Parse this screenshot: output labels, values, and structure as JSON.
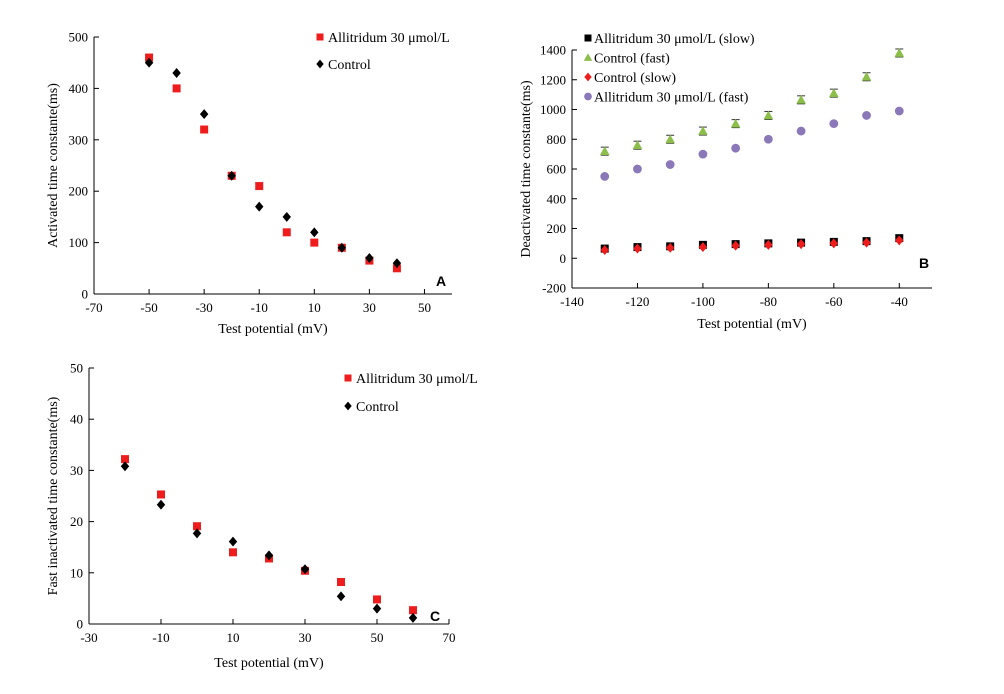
{
  "chart_data": [
    {
      "type": "scatter",
      "panel_label": "A",
      "xlabel": "Test potential (mV)",
      "ylabel": "Activated time constante(ms)",
      "xlim": [
        -70,
        60
      ],
      "ylim": [
        0,
        500
      ],
      "xticks": [
        -70,
        -50,
        -30,
        -10,
        10,
        30,
        50
      ],
      "yticks": [
        0,
        100,
        200,
        300,
        400,
        500
      ],
      "legend_position": "top-right",
      "series": [
        {
          "name": "Allitridum 30 μmol/L",
          "marker": "square",
          "color": "#ee1c1c",
          "x": [
            -50,
            -40,
            -30,
            -20,
            -10,
            0,
            10,
            20,
            30,
            40
          ],
          "y": [
            460,
            400,
            320,
            230,
            210,
            120,
            100,
            90,
            65,
            50
          ]
        },
        {
          "name": "Control",
          "marker": "diamond",
          "color": "#000000",
          "x": [
            -50,
            -40,
            -30,
            -20,
            -10,
            0,
            10,
            20,
            30,
            40
          ],
          "y": [
            450,
            430,
            350,
            230,
            170,
            150,
            120,
            90,
            70,
            60
          ]
        }
      ]
    },
    {
      "type": "scatter",
      "panel_label": "B",
      "xlabel": "Test potential (mV)",
      "ylabel": "Deactivated time constante(ms)",
      "xlim": [
        -140,
        -30
      ],
      "ylim": [
        -200,
        1400
      ],
      "xticks": [
        -140,
        -120,
        -100,
        -80,
        -60,
        -40
      ],
      "yticks": [
        -200,
        0,
        200,
        400,
        600,
        800,
        1000,
        1200,
        1400
      ],
      "legend_position": "top-left",
      "series": [
        {
          "name": "Allitridum 30 μmol/L (slow)",
          "marker": "square",
          "color": "#000000",
          "x": [
            -130,
            -120,
            -110,
            -100,
            -90,
            -80,
            -70,
            -60,
            -50,
            -40
          ],
          "y": [
            65,
            75,
            80,
            90,
            95,
            100,
            105,
            110,
            115,
            135
          ]
        },
        {
          "name": "Control (fast)",
          "marker": "triangle",
          "color": "#8cbf4a",
          "x": [
            -130,
            -120,
            -110,
            -100,
            -90,
            -80,
            -70,
            -60,
            -50,
            -40
          ],
          "y": [
            720,
            760,
            800,
            855,
            905,
            960,
            1065,
            1110,
            1220,
            1380
          ]
        },
        {
          "name": "Control (slow)",
          "marker": "diamond",
          "color": "#ee1c1c",
          "x": [
            -130,
            -120,
            -110,
            -100,
            -90,
            -80,
            -70,
            -60,
            -50,
            -40
          ],
          "y": [
            55,
            65,
            70,
            75,
            85,
            90,
            95,
            100,
            105,
            120
          ]
        },
        {
          "name": "Allitridum 30 μmol/L (fast)",
          "marker": "circle",
          "color": "#8b78b8",
          "x": [
            -130,
            -120,
            -110,
            -100,
            -90,
            -80,
            -70,
            -60,
            -50,
            -40
          ],
          "y": [
            550,
            600,
            630,
            700,
            740,
            800,
            855,
            905,
            960,
            990
          ]
        }
      ]
    },
    {
      "type": "scatter",
      "panel_label": "C",
      "xlabel": "Test potential (mV)",
      "ylabel": "Fast inactivated time constante(ms)",
      "xlim": [
        -30,
        70
      ],
      "ylim": [
        0,
        50
      ],
      "xticks": [
        -30,
        -10,
        10,
        30,
        50,
        70
      ],
      "yticks": [
        0,
        10,
        20,
        30,
        40,
        50
      ],
      "legend_position": "top-right",
      "series": [
        {
          "name": "Allitridum 30 μmol/L",
          "marker": "square",
          "color": "#ee1c1c",
          "x": [
            -20,
            -10,
            0,
            10,
            20,
            30,
            40,
            50,
            60
          ],
          "y": [
            32.2,
            25.3,
            19.1,
            14,
            12.8,
            10.4,
            8.2,
            4.8,
            2.7
          ]
        },
        {
          "name": "Control",
          "marker": "diamond",
          "color": "#000000",
          "x": [
            -20,
            -10,
            0,
            10,
            20,
            30,
            40,
            50,
            60
          ],
          "y": [
            30.8,
            23.3,
            17.7,
            16.1,
            13.4,
            10.7,
            5.4,
            3,
            1.2
          ]
        }
      ]
    }
  ]
}
